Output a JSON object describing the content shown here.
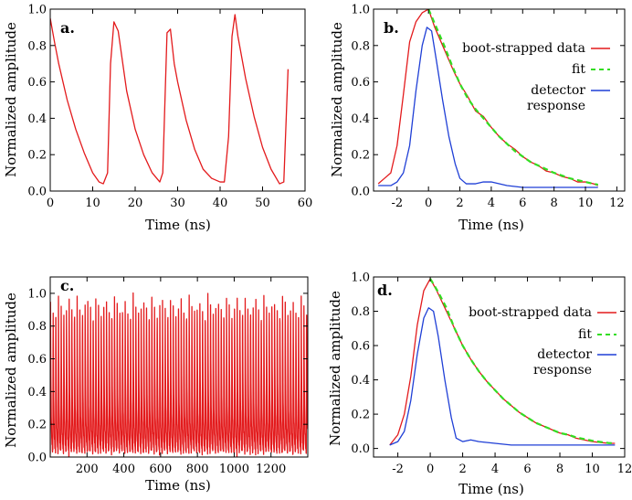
{
  "colors": {
    "data": "#e31a1c",
    "fit": "#33dd22",
    "detector": "#1f3fd6"
  },
  "chart_data": [
    {
      "id": "a",
      "panel_label": "a.",
      "type": "line",
      "xlabel": "Time (ns)",
      "ylabel": "Normalized amplitude",
      "xlim": [
        0,
        60
      ],
      "ylim": [
        0,
        1
      ],
      "xticks": [
        0,
        10,
        20,
        30,
        40,
        50,
        60
      ],
      "yticks": [
        0.0,
        0.2,
        0.4,
        0.6,
        0.8,
        1.0
      ],
      "xtick_labels": [
        "0",
        "10",
        "20",
        "30",
        "40",
        "50",
        "60"
      ],
      "ytick_labels": [
        "0.0",
        "0.2",
        "0.4",
        "0.6",
        "0.8",
        "1.0"
      ],
      "series": [
        {
          "color": "data",
          "x": [
            0,
            1,
            2,
            4,
            6,
            8,
            10,
            11.5,
            12.5,
            13.5,
            14.2,
            15,
            16,
            18,
            20,
            22,
            24,
            25.8,
            26.5,
            27.5,
            28.3,
            29.2,
            30,
            32,
            34,
            36,
            38,
            40,
            41,
            42,
            42.8,
            43.5,
            44.2,
            46,
            48,
            50,
            52,
            54,
            55,
            56
          ],
          "y": [
            0.95,
            0.82,
            0.7,
            0.5,
            0.34,
            0.21,
            0.1,
            0.05,
            0.04,
            0.1,
            0.7,
            0.93,
            0.88,
            0.55,
            0.34,
            0.2,
            0.1,
            0.05,
            0.1,
            0.87,
            0.89,
            0.7,
            0.6,
            0.39,
            0.23,
            0.12,
            0.07,
            0.05,
            0.05,
            0.3,
            0.85,
            0.97,
            0.85,
            0.62,
            0.41,
            0.24,
            0.12,
            0.04,
            0.05,
            0.67
          ]
        }
      ]
    },
    {
      "id": "b",
      "panel_label": "b.",
      "type": "line",
      "xlabel": "Time (ns)",
      "ylabel": "Normalized amplitude",
      "xlim": [
        -3.5,
        12.5
      ],
      "ylim": [
        0,
        1
      ],
      "xticks": [
        -2,
        0,
        2,
        4,
        6,
        8,
        10,
        12
      ],
      "yticks": [
        0.0,
        0.2,
        0.4,
        0.6,
        0.8,
        1.0
      ],
      "xtick_labels": [
        "-2",
        "0",
        "2",
        "4",
        "6",
        "8",
        "10",
        "12"
      ],
      "ytick_labels": [
        "0.0",
        "0.2",
        "0.4",
        "0.6",
        "0.8",
        "1.0"
      ],
      "legend": {
        "placement": "top-right",
        "entries": [
          "boot-strapped data",
          "fit",
          [
            "detector",
            "response"
          ]
        ]
      },
      "series": [
        {
          "name": "boot-strapped data",
          "color": "data",
          "x": [
            -3.2,
            -2.8,
            -2.4,
            -2.0,
            -1.6,
            -1.2,
            -0.8,
            -0.4,
            0.0,
            0.4,
            0.8,
            1.2,
            1.6,
            2.0,
            2.5,
            3.0,
            3.5,
            4.0,
            4.5,
            5.0,
            5.5,
            6.0,
            6.5,
            7.0,
            7.5,
            8.0,
            8.5,
            9.0,
            9.5,
            10.0,
            10.5,
            10.8
          ],
          "y": [
            0.04,
            0.07,
            0.1,
            0.25,
            0.53,
            0.82,
            0.93,
            0.98,
            1.0,
            0.9,
            0.82,
            0.74,
            0.66,
            0.59,
            0.52,
            0.44,
            0.41,
            0.35,
            0.3,
            0.26,
            0.23,
            0.19,
            0.16,
            0.14,
            0.11,
            0.1,
            0.08,
            0.07,
            0.05,
            0.05,
            0.04,
            0.03
          ]
        },
        {
          "name": "fit",
          "color": "fit",
          "dashed": true,
          "x": [
            0.0,
            0.5,
            1.0,
            1.5,
            2.0,
            2.5,
            3.0,
            3.5,
            4.0,
            4.5,
            5.0,
            5.5,
            6.0,
            6.5,
            7.0,
            7.5,
            8.0,
            8.5,
            9.0,
            9.5,
            10.0,
            10.5,
            10.8
          ],
          "y": [
            1.0,
            0.9,
            0.8,
            0.69,
            0.59,
            0.51,
            0.45,
            0.4,
            0.35,
            0.3,
            0.26,
            0.22,
            0.19,
            0.16,
            0.14,
            0.12,
            0.1,
            0.085,
            0.07,
            0.06,
            0.05,
            0.04,
            0.035
          ]
        },
        {
          "name": "detector response",
          "color": "detector",
          "x": [
            -3.2,
            -2.4,
            -2.0,
            -1.6,
            -1.2,
            -0.8,
            -0.4,
            -0.1,
            0.2,
            0.5,
            0.9,
            1.3,
            1.7,
            2.0,
            2.4,
            3.0,
            3.5,
            4.0,
            5.0,
            6.0,
            7.0,
            8.0,
            9.0,
            10.0,
            10.8
          ],
          "y": [
            0.03,
            0.03,
            0.05,
            0.1,
            0.25,
            0.55,
            0.8,
            0.9,
            0.88,
            0.72,
            0.5,
            0.3,
            0.15,
            0.07,
            0.04,
            0.04,
            0.05,
            0.05,
            0.03,
            0.02,
            0.02,
            0.02,
            0.02,
            0.02,
            0.02
          ]
        }
      ]
    },
    {
      "id": "c",
      "panel_label": "c.",
      "type": "line",
      "xlabel": "Time (ns)",
      "ylabel": "Normalized amplitude",
      "xlim": [
        0,
        1400
      ],
      "ylim": [
        0,
        1.1
      ],
      "xticks": [
        200,
        400,
        600,
        800,
        1000,
        1200
      ],
      "yticks": [
        0.0,
        0.2,
        0.4,
        0.6,
        0.8,
        1.0
      ],
      "xtick_labels": [
        "200",
        "400",
        "600",
        "800",
        "1000",
        "1200"
      ],
      "ytick_labels": [
        "0.0",
        "0.2",
        "0.4",
        "0.6",
        "0.8",
        "1.0"
      ],
      "series": [
        {
          "color": "data",
          "pattern": "periodic decay",
          "period_ns": 14.5,
          "min": 0.02,
          "max": 0.98
        }
      ]
    },
    {
      "id": "d",
      "panel_label": "d.",
      "type": "line",
      "xlabel": "Time (ns)",
      "ylabel": "Normalized amplitude",
      "xlim": [
        -3.5,
        12.0
      ],
      "ylim": [
        -0.05,
        1.0
      ],
      "xticks": [
        -2,
        0,
        2,
        4,
        6,
        8,
        10,
        12
      ],
      "yticks": [
        0.0,
        0.2,
        0.4,
        0.6,
        0.8,
        1.0
      ],
      "xtick_labels": [
        "-2",
        "0",
        "2",
        "4",
        "6",
        "8",
        "10",
        "12"
      ],
      "ytick_labels": [
        "0.0",
        "0.2",
        "0.4",
        "0.6",
        "0.8",
        "1.0"
      ],
      "legend": {
        "placement": "top-right",
        "entries": [
          "boot-strapped data",
          "fit",
          [
            "detector",
            "response"
          ]
        ]
      },
      "series": [
        {
          "name": "boot-strapped data",
          "color": "data",
          "x": [
            -2.5,
            -2.0,
            -1.6,
            -1.2,
            -0.8,
            -0.4,
            0.0,
            0.4,
            0.8,
            1.2,
            1.6,
            2.0,
            2.5,
            3.0,
            3.5,
            4.0,
            4.5,
            5.0,
            5.5,
            6.0,
            6.5,
            7.0,
            7.5,
            8.0,
            8.5,
            9.0,
            9.5,
            10.0,
            10.5,
            11.0,
            11.4
          ],
          "y": [
            0.02,
            0.08,
            0.2,
            0.42,
            0.72,
            0.92,
            0.99,
            0.92,
            0.84,
            0.76,
            0.68,
            0.6,
            0.52,
            0.45,
            0.39,
            0.34,
            0.29,
            0.25,
            0.21,
            0.18,
            0.15,
            0.13,
            0.11,
            0.09,
            0.08,
            0.06,
            0.05,
            0.04,
            0.035,
            0.03,
            0.03
          ]
        },
        {
          "name": "fit",
          "color": "fit",
          "dashed": true,
          "x": [
            0.0,
            0.5,
            1.0,
            1.5,
            2.0,
            2.5,
            3.0,
            3.5,
            4.0,
            4.5,
            5.0,
            5.5,
            6.0,
            6.5,
            7.0,
            7.5,
            8.0,
            8.5,
            9.0,
            9.5,
            10.0,
            10.5,
            11.0,
            11.4
          ],
          "y": [
            0.99,
            0.91,
            0.82,
            0.7,
            0.6,
            0.52,
            0.45,
            0.39,
            0.34,
            0.29,
            0.25,
            0.21,
            0.18,
            0.15,
            0.13,
            0.11,
            0.09,
            0.08,
            0.065,
            0.055,
            0.045,
            0.038,
            0.032,
            0.03
          ]
        },
        {
          "name": "detector response",
          "color": "detector",
          "x": [
            -2.5,
            -2.0,
            -1.6,
            -1.2,
            -0.8,
            -0.4,
            -0.1,
            0.2,
            0.5,
            0.9,
            1.3,
            1.6,
            2.0,
            2.5,
            3.0,
            4.0,
            5.0,
            6.0,
            7.0,
            8.0,
            9.0,
            10.0,
            11.0,
            11.4
          ],
          "y": [
            0.02,
            0.04,
            0.1,
            0.28,
            0.55,
            0.76,
            0.82,
            0.8,
            0.65,
            0.4,
            0.18,
            0.06,
            0.04,
            0.05,
            0.04,
            0.03,
            0.02,
            0.02,
            0.02,
            0.02,
            0.02,
            0.02,
            0.02,
            0.02
          ]
        }
      ]
    }
  ]
}
